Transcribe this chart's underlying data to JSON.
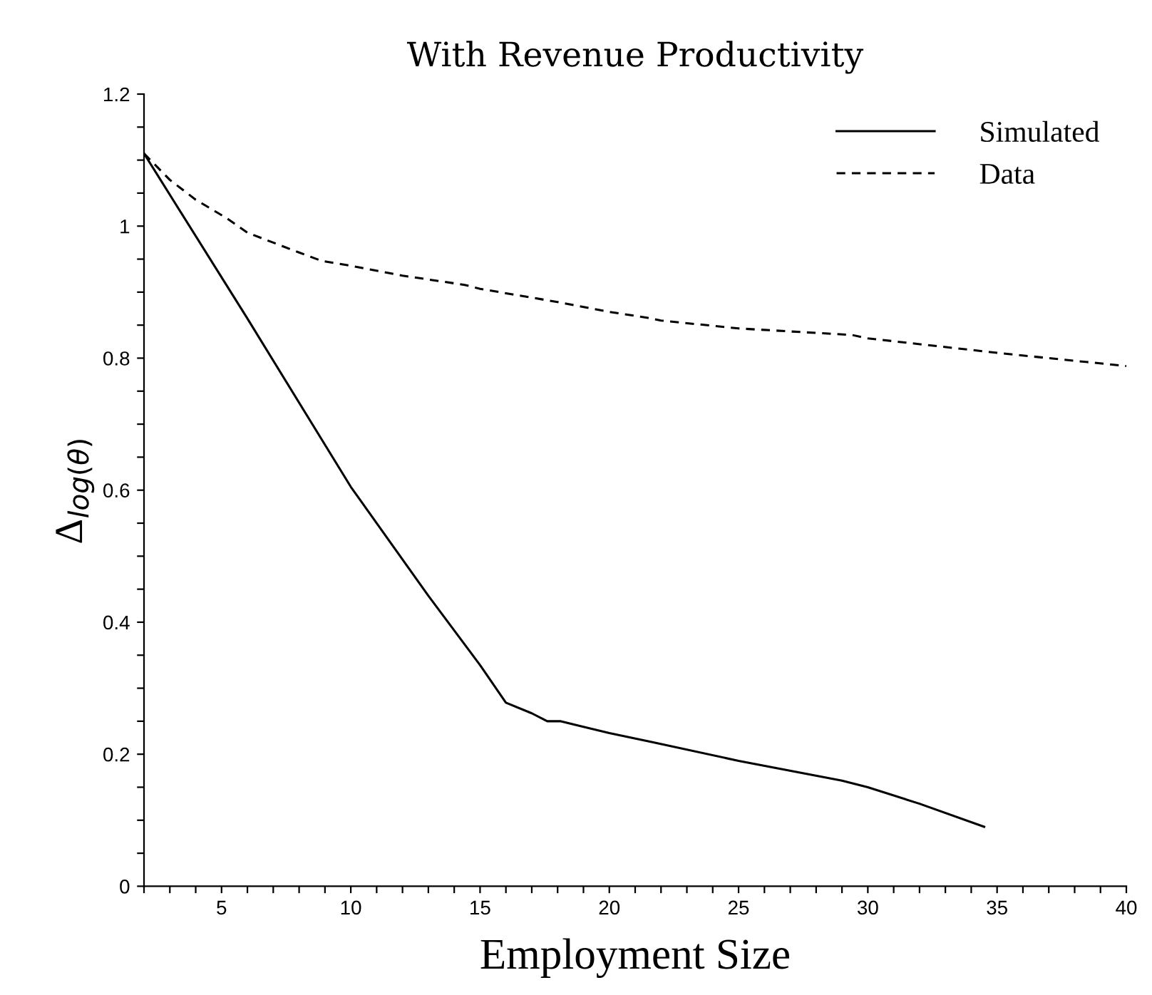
{
  "chart_data": {
    "type": "line",
    "title": "With Revenue Productivity",
    "xlabel": "Employment Size",
    "ylabel": "Δ$_{log(θ)}$",
    "xlim": [
      2,
      40
    ],
    "ylim": [
      0,
      1.2
    ],
    "xticks": [
      {
        "value": 2,
        "label": null
      },
      {
        "value": 3,
        "label": null
      },
      {
        "value": 4,
        "label": null
      },
      5,
      {
        "value": 6,
        "label": null
      },
      {
        "value": 7,
        "label": null
      },
      {
        "value": 8,
        "label": null
      },
      {
        "value": 9,
        "label": null
      },
      10,
      {
        "value": 11,
        "label": null
      },
      {
        "value": 12,
        "label": null
      },
      {
        "value": 13,
        "label": null
      },
      {
        "value": 14,
        "label": null
      },
      15,
      {
        "value": 16,
        "label": null
      },
      {
        "value": 17,
        "label": null
      },
      {
        "value": 18,
        "label": null
      },
      {
        "value": 19,
        "label": null
      },
      20,
      {
        "value": 21,
        "label": null
      },
      {
        "value": 22,
        "label": null
      },
      {
        "value": 23,
        "label": null
      },
      {
        "value": 24,
        "label": null
      },
      25,
      {
        "value": 26,
        "label": null
      },
      {
        "value": 27,
        "label": null
      },
      {
        "value": 28,
        "label": null
      },
      {
        "value": 29,
        "label": null
      },
      30,
      {
        "value": 31,
        "label": null
      },
      {
        "value": 32,
        "label": null
      },
      {
        "value": 33,
        "label": null
      },
      {
        "value": 34,
        "label": null
      },
      35,
      {
        "value": 36,
        "label": null
      },
      {
        "value": 37,
        "label": null
      },
      {
        "value": 38,
        "label": null
      },
      {
        "value": 39,
        "label": null
      },
      40
    ],
    "yticks": [
      0,
      {
        "value": 0.05,
        "label": null
      },
      {
        "value": 0.1,
        "label": null
      },
      {
        "value": 0.15,
        "label": null
      },
      0.2,
      {
        "value": 0.25,
        "label": null
      },
      {
        "value": 0.3,
        "label": null
      },
      {
        "value": 0.35,
        "label": null
      },
      0.4,
      {
        "value": 0.45,
        "label": null
      },
      {
        "value": 0.5,
        "label": null
      },
      {
        "value": 0.55,
        "label": null
      },
      0.6,
      {
        "value": 0.65,
        "label": null
      },
      {
        "value": 0.7,
        "label": null
      },
      {
        "value": 0.75,
        "label": null
      },
      0.8,
      {
        "value": 0.85,
        "label": null
      },
      {
        "value": 0.9,
        "label": null
      },
      {
        "value": 0.95,
        "label": null
      },
      1,
      {
        "value": 1.05,
        "label": null
      },
      {
        "value": 1.1,
        "label": null
      },
      {
        "value": 1.15,
        "label": null
      },
      1.2
    ],
    "grid": false,
    "legend": "top right",
    "marker": "none",
    "series": [
      {
        "name": "Simulated",
        "color": "#000000",
        "line_style": "solid",
        "x": [
          2,
          6,
          10,
          13,
          15,
          16,
          17,
          17.6,
          18.1,
          20,
          21.7,
          25,
          29,
          30,
          32,
          34.5
        ],
        "values": [
          1.11,
          0.86,
          0.605,
          0.44,
          0.335,
          0.278,
          0.262,
          0.25,
          0.25,
          0.232,
          0.218,
          0.19,
          0.16,
          0.15,
          0.125,
          0.09
        ]
      },
      {
        "name": "Data",
        "color": "#000000",
        "line_style": "dashed",
        "x": [
          2,
          3,
          4,
          5.2,
          6,
          8,
          8.9,
          10,
          12,
          14.4,
          15,
          18,
          20,
          21.5,
          22,
          25,
          29.4,
          30,
          35,
          40
        ],
        "values": [
          1.11,
          1.07,
          1.04,
          1.012,
          0.99,
          0.96,
          0.947,
          0.94,
          0.925,
          0.911,
          0.905,
          0.885,
          0.87,
          0.861,
          0.857,
          0.845,
          0.835,
          0.83,
          0.808,
          0.788
        ]
      }
    ]
  }
}
